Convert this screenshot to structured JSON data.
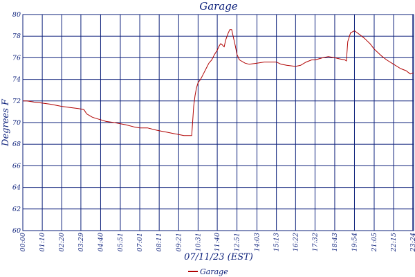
{
  "chart_data": {
    "type": "line",
    "title": "Garage",
    "xlabel": "07/11/23 (EST)",
    "ylabel": "Degrees F",
    "ylim": [
      60,
      80
    ],
    "yticks": [
      60,
      62,
      64,
      66,
      68,
      70,
      72,
      74,
      76,
      78,
      80
    ],
    "xlim": [
      0,
      1407
    ],
    "xticks": [
      {
        "t": 0,
        "label": "00:00"
      },
      {
        "t": 70,
        "label": "01:10"
      },
      {
        "t": 140,
        "label": "02:20"
      },
      {
        "t": 209,
        "label": "03:29"
      },
      {
        "t": 280,
        "label": "04:40"
      },
      {
        "t": 351,
        "label": "05:51"
      },
      {
        "t": 421,
        "label": "07:01"
      },
      {
        "t": 491,
        "label": "08:11"
      },
      {
        "t": 561,
        "label": "09:21"
      },
      {
        "t": 631,
        "label": "10:31"
      },
      {
        "t": 700,
        "label": "11:40"
      },
      {
        "t": 771,
        "label": "12:51"
      },
      {
        "t": 843,
        "label": "14:03"
      },
      {
        "t": 913,
        "label": "15:13"
      },
      {
        "t": 982,
        "label": "16:22"
      },
      {
        "t": 1052,
        "label": "17:32"
      },
      {
        "t": 1123,
        "label": "18:43"
      },
      {
        "t": 1194,
        "label": "19:54"
      },
      {
        "t": 1265,
        "label": "21:05"
      },
      {
        "t": 1335,
        "label": "22:15"
      },
      {
        "t": 1404,
        "label": "23:24"
      }
    ],
    "grid": true,
    "legend_position": "bottom-center",
    "colors": {
      "axis": "#0b1f7a",
      "grid": "#0b1f7a",
      "series": "#b00000"
    },
    "series": [
      {
        "name": "Garage",
        "x": [
          0,
          15,
          40,
          70,
          100,
          140,
          170,
          200,
          220,
          230,
          250,
          262,
          275,
          300,
          330,
          350,
          370,
          400,
          421,
          450,
          480,
          500,
          520,
          540,
          561,
          580,
          600,
          608,
          615,
          620,
          625,
          631,
          640,
          650,
          660,
          670,
          680,
          690,
          700,
          705,
          712,
          718,
          725,
          730,
          738,
          745,
          752,
          758,
          765,
          771,
          780,
          800,
          815,
          843,
          870,
          913,
          930,
          950,
          982,
          1000,
          1020,
          1040,
          1052,
          1080,
          1100,
          1123,
          1140,
          1160,
          1165,
          1170,
          1180,
          1194,
          1210,
          1230,
          1250,
          1265,
          1290,
          1310,
          1335,
          1360,
          1380,
          1395,
          1407
        ],
        "y": [
          72.0,
          72.0,
          71.9,
          71.8,
          71.7,
          71.5,
          71.4,
          71.3,
          71.2,
          70.8,
          70.5,
          70.4,
          70.3,
          70.1,
          70.0,
          69.9,
          69.8,
          69.6,
          69.5,
          69.5,
          69.3,
          69.2,
          69.1,
          69.0,
          68.9,
          68.8,
          68.8,
          68.8,
          71.5,
          72.5,
          73.2,
          73.7,
          74.0,
          74.5,
          75.0,
          75.5,
          75.8,
          76.3,
          76.7,
          77.0,
          77.3,
          77.2,
          77.0,
          77.6,
          78.2,
          78.6,
          78.6,
          77.9,
          77.1,
          76.3,
          75.8,
          75.5,
          75.4,
          75.5,
          75.6,
          75.6,
          75.4,
          75.3,
          75.2,
          75.3,
          75.6,
          75.8,
          75.8,
          76.0,
          76.1,
          76.0,
          75.9,
          75.8,
          75.7,
          77.5,
          78.3,
          78.5,
          78.2,
          77.8,
          77.3,
          76.8,
          76.2,
          75.8,
          75.4,
          75.0,
          74.8,
          74.5,
          74.6
        ]
      }
    ]
  }
}
